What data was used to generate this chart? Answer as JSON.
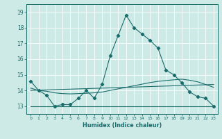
{
  "title": "",
  "xlabel": "Humidex (Indice chaleur)",
  "ylabel": "",
  "background_color": "#ceeae6",
  "line_color": "#1a6b6b",
  "xlim": [
    -0.5,
    23.5
  ],
  "ylim": [
    12.5,
    19.5
  ],
  "xticks": [
    0,
    1,
    2,
    3,
    4,
    5,
    6,
    7,
    8,
    9,
    10,
    11,
    12,
    13,
    14,
    15,
    16,
    17,
    18,
    19,
    20,
    21,
    22,
    23
  ],
  "yticks": [
    13,
    14,
    15,
    16,
    17,
    18,
    19
  ],
  "series1_x": [
    0,
    1,
    2,
    3,
    4,
    5,
    6,
    7,
    8,
    9,
    10,
    11,
    12,
    13,
    14,
    15,
    16,
    17,
    18,
    19,
    20,
    21,
    22,
    23
  ],
  "series1_y": [
    14.6,
    14.0,
    13.7,
    13.0,
    13.1,
    13.1,
    13.5,
    14.0,
    13.5,
    14.4,
    16.2,
    17.5,
    18.8,
    18.0,
    17.6,
    17.2,
    16.7,
    15.3,
    15.0,
    14.5,
    13.9,
    13.6,
    13.5,
    13.0
  ],
  "series2_x": [
    0,
    1,
    2,
    3,
    4,
    5,
    6,
    7,
    8,
    9,
    10,
    11,
    12,
    13,
    14,
    15,
    16,
    17,
    18,
    19,
    20,
    21,
    22,
    23
  ],
  "series2_y": [
    14.15,
    14.0,
    13.95,
    13.85,
    13.8,
    13.78,
    13.8,
    13.82,
    13.85,
    13.9,
    14.0,
    14.1,
    14.2,
    14.3,
    14.4,
    14.5,
    14.58,
    14.63,
    14.68,
    14.72,
    14.65,
    14.55,
    14.38,
    14.2
  ],
  "series3_x": [
    0,
    23
  ],
  "series3_y": [
    14.0,
    14.38
  ],
  "series4_x": [
    0,
    23
  ],
  "series4_y": [
    13.0,
    13.0
  ]
}
